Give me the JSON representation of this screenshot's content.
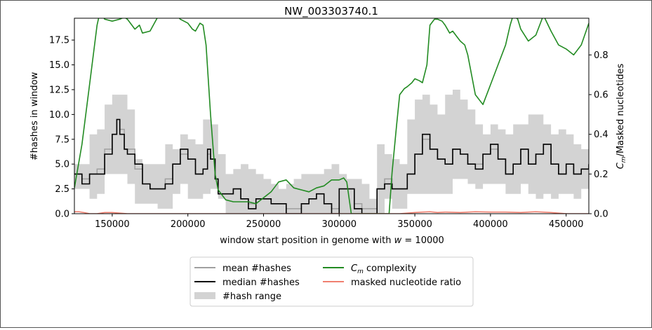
{
  "chart_data": {
    "type": "line",
    "title": "NW_003303740.1",
    "xlabel": "window start position in genome with w = 10000",
    "xlabel_parts": [
      "window start position in genome with ",
      "w",
      " = 10000"
    ],
    "ylabel": "#hashes in window",
    "y2label": "C_m/Masked nucleotides",
    "y2label_parts": [
      "C",
      "m",
      "/Masked nucleotides"
    ],
    "xlim": [
      125000,
      465000
    ],
    "ylim": [
      0,
      19.7
    ],
    "y2lim": [
      0,
      0.985
    ],
    "xticks": [
      150000,
      200000,
      250000,
      300000,
      350000,
      400000,
      450000
    ],
    "yticks": [
      0.0,
      2.5,
      5.0,
      7.5,
      10.0,
      12.5,
      15.0,
      17.5
    ],
    "y2ticks": [
      0.0,
      0.2,
      0.4,
      0.6,
      0.8
    ],
    "legend": {
      "placement": "bottom-center",
      "entries": [
        {
          "label": "mean #hashes",
          "color": "#a0a0a0"
        },
        {
          "label": "median #hashes",
          "color": "#000000"
        },
        {
          "label": "#hash range",
          "color": "#d3d3d3"
        },
        {
          "label": "C_m complexity",
          "label_parts": [
            "C",
            "m",
            " complexity"
          ],
          "color": "#228b22"
        },
        {
          "label": "masked nucleotide ratio",
          "label_parts": [
            "",
            "",
            "masked nucleotide ratio"
          ],
          "color": "#f08070"
        }
      ]
    },
    "series": [
      {
        "name": "#hash range",
        "color": "#d3d3d3",
        "x": [
          125000,
          135000,
          140000,
          145000,
          150000,
          155000,
          160000,
          165000,
          170000,
          175000,
          180000,
          185000,
          190000,
          195000,
          200000,
          205000,
          210000,
          215000,
          220000,
          225000,
          230000,
          235000,
          240000,
          245000,
          250000,
          255000,
          260000,
          265000,
          270000,
          275000,
          280000,
          285000,
          290000,
          295000,
          300000,
          305000,
          310000,
          315000,
          320000,
          325000,
          330000,
          335000,
          340000,
          345000,
          350000,
          355000,
          360000,
          365000,
          370000,
          375000,
          380000,
          385000,
          390000,
          395000,
          400000,
          405000,
          410000,
          415000,
          420000,
          425000,
          430000,
          435000,
          440000,
          445000,
          450000,
          455000,
          460000,
          465000
        ],
        "low": [
          2.5,
          1.5,
          2.0,
          4.0,
          4.0,
          4.0,
          3.0,
          1.0,
          1.0,
          1.0,
          0.5,
          0.5,
          2.0,
          3.0,
          1.5,
          1.5,
          2.0,
          2.5,
          1.5,
          0.0,
          0.0,
          0.0,
          0.0,
          0.0,
          0.0,
          0.0,
          0.0,
          0.0,
          0.0,
          0.0,
          0.0,
          0.0,
          0.0,
          0.0,
          0.0,
          0.0,
          0.0,
          0.0,
          0.0,
          0.0,
          1.5,
          0.5,
          0.5,
          2.0,
          2.0,
          2.0,
          2.0,
          2.0,
          2.0,
          3.5,
          3.5,
          3.0,
          2.5,
          3.0,
          3.0,
          3.0,
          2.0,
          2.0,
          3.0,
          2.0,
          1.5,
          2.0,
          1.5,
          2.0,
          2.0,
          1.5,
          2.5,
          3.0
        ],
        "high": [
          5.0,
          8.0,
          8.5,
          11.0,
          12.0,
          12.0,
          10.5,
          5.5,
          5.0,
          5.0,
          5.0,
          7.0,
          6.5,
          8.0,
          7.5,
          7.0,
          9.5,
          9.0,
          6.0,
          4.0,
          4.5,
          5.0,
          4.5,
          4.0,
          3.5,
          3.0,
          2.5,
          3.0,
          3.5,
          4.0,
          4.0,
          4.0,
          4.5,
          5.0,
          4.0,
          3.5,
          3.5,
          3.0,
          1.5,
          7.0,
          6.0,
          5.5,
          5.0,
          9.5,
          11.5,
          12.0,
          11.0,
          10.0,
          12.0,
          12.5,
          11.5,
          10.5,
          9.0,
          8.0,
          9.0,
          8.5,
          8.0,
          9.0,
          9.0,
          10.0,
          10.0,
          9.0,
          8.0,
          8.5,
          8.0,
          7.0,
          6.5,
          6.5
        ]
      },
      {
        "name": "mean #hashes",
        "color": "#a0a0a0",
        "x": [
          125000,
          130000,
          135000,
          140000,
          145000,
          150000,
          153000,
          155000,
          158000,
          160000,
          165000,
          170000,
          175000,
          180000,
          185000,
          190000,
          195000,
          200000,
          205000,
          210000,
          213000,
          215000,
          218000,
          220000,
          225000,
          230000,
          235000,
          240000,
          245000,
          250000,
          255000,
          260000,
          265000,
          270000,
          275000,
          280000,
          285000,
          290000,
          295000,
          300000,
          305000,
          310000,
          315000,
          320000,
          325000,
          330000,
          335000,
          340000,
          345000,
          350000,
          355000,
          360000,
          365000,
          370000,
          375000,
          380000,
          385000,
          390000,
          395000,
          400000,
          405000,
          410000,
          415000,
          420000,
          425000,
          430000,
          435000,
          440000,
          445000,
          450000,
          455000,
          460000,
          465000
        ],
        "y": [
          4.0,
          3.5,
          4.0,
          4.5,
          6.5,
          8.0,
          9.5,
          8.5,
          6.5,
          6.5,
          4.5,
          3.0,
          2.5,
          2.5,
          3.5,
          5.0,
          6.0,
          5.5,
          4.0,
          4.5,
          6.0,
          5.5,
          3.5,
          2.0,
          2.0,
          2.5,
          1.5,
          1.0,
          1.5,
          1.5,
          1.0,
          1.0,
          0.5,
          0.5,
          1.0,
          1.5,
          2.0,
          1.0,
          0.5,
          2.5,
          2.5,
          1.0,
          0.5,
          0.5,
          2.5,
          3.5,
          2.5,
          2.5,
          4.0,
          6.0,
          7.5,
          6.5,
          5.5,
          5.0,
          6.5,
          6.0,
          5.0,
          5.0,
          6.0,
          6.5,
          5.5,
          4.0,
          5.0,
          6.5,
          5.0,
          6.0,
          7.0,
          5.0,
          4.0,
          5.0,
          4.0,
          4.5,
          5.0
        ]
      },
      {
        "name": "median #hashes",
        "color": "#000000",
        "x": [
          125000,
          130000,
          135000,
          140000,
          145000,
          150000,
          153000,
          155000,
          158000,
          160000,
          165000,
          170000,
          175000,
          180000,
          185000,
          190000,
          195000,
          200000,
          205000,
          210000,
          213000,
          215000,
          218000,
          220000,
          225000,
          230000,
          235000,
          240000,
          245000,
          250000,
          255000,
          260000,
          265000,
          270000,
          275000,
          280000,
          285000,
          290000,
          295000,
          300000,
          305000,
          310000,
          315000,
          320000,
          325000,
          330000,
          335000,
          340000,
          345000,
          350000,
          355000,
          360000,
          365000,
          370000,
          375000,
          380000,
          385000,
          390000,
          395000,
          400000,
          405000,
          410000,
          415000,
          420000,
          425000,
          430000,
          435000,
          440000,
          445000,
          450000,
          455000,
          460000,
          465000
        ],
        "y": [
          4.0,
          3.0,
          4.0,
          4.0,
          6.0,
          8.0,
          9.5,
          8.0,
          6.5,
          6.0,
          5.0,
          3.0,
          2.5,
          2.5,
          3.0,
          5.0,
          6.5,
          5.5,
          4.0,
          4.5,
          6.5,
          5.5,
          3.5,
          2.0,
          2.0,
          2.5,
          1.5,
          0.5,
          1.5,
          1.5,
          1.0,
          1.0,
          0.0,
          0.0,
          1.0,
          1.5,
          2.0,
          1.0,
          0.0,
          2.5,
          2.5,
          0.5,
          0.0,
          0.0,
          2.5,
          3.0,
          2.5,
          2.5,
          4.0,
          6.0,
          8.0,
          6.5,
          5.5,
          5.0,
          6.5,
          6.0,
          5.0,
          4.5,
          6.0,
          7.0,
          5.5,
          4.0,
          5.0,
          6.5,
          5.0,
          6.0,
          7.0,
          5.0,
          4.0,
          5.0,
          4.0,
          4.5,
          5.0
        ]
      },
      {
        "name": "C_m complexity",
        "color": "#228b22",
        "axis": "right",
        "x": [
          125000,
          130000,
          135000,
          140000,
          142000,
          145000,
          150000,
          155000,
          158000,
          160000,
          165000,
          168000,
          170000,
          175000,
          180000,
          185000,
          190000,
          195000,
          200000,
          203000,
          205000,
          208000,
          210000,
          212000,
          215000,
          218000,
          220000,
          225000,
          230000,
          235000,
          240000,
          245000,
          250000,
          255000,
          260000,
          265000,
          270000,
          275000,
          280000,
          285000,
          290000,
          295000,
          300000,
          303000,
          305000,
          308000,
          310000,
          312000,
          315000,
          320000,
          325000,
          330000,
          333000,
          335000,
          338000,
          340000,
          343000,
          345000,
          348000,
          350000,
          353000,
          355000,
          358000,
          360000,
          363000,
          365000,
          368000,
          370000,
          373000,
          375000,
          378000,
          380000,
          383000,
          385000,
          390000,
          395000,
          400000,
          405000,
          410000,
          413000,
          415000,
          418000,
          420000,
          425000,
          430000,
          433000,
          435000,
          440000,
          445000,
          450000,
          455000,
          460000,
          465000
        ],
        "y": [
          0.13,
          0.35,
          0.65,
          0.95,
          1.02,
          0.98,
          0.97,
          0.98,
          0.99,
          0.98,
          0.93,
          0.95,
          0.91,
          0.92,
          0.99,
          1.0,
          1.02,
          0.98,
          0.96,
          0.93,
          0.92,
          0.96,
          0.95,
          0.85,
          0.5,
          0.2,
          0.12,
          0.07,
          0.06,
          0.06,
          0.06,
          0.05,
          0.08,
          0.11,
          0.16,
          0.17,
          0.13,
          0.12,
          0.11,
          0.13,
          0.14,
          0.17,
          0.17,
          0.18,
          0.16,
          0.0,
          0.0,
          0.0,
          0.0,
          0.0,
          0.0,
          0.0,
          0.0,
          0.21,
          0.45,
          0.6,
          0.63,
          0.64,
          0.66,
          0.68,
          0.67,
          0.66,
          0.75,
          0.95,
          0.98,
          0.98,
          0.97,
          0.95,
          0.91,
          0.92,
          0.89,
          0.87,
          0.85,
          0.8,
          0.6,
          0.55,
          0.65,
          0.75,
          0.85,
          0.95,
          1.0,
          0.98,
          0.93,
          0.87,
          0.9,
          0.96,
          1.0,
          0.92,
          0.85,
          0.83,
          0.8,
          0.85,
          0.96
        ]
      },
      {
        "name": "masked nucleotide ratio",
        "color": "#f08070",
        "axis": "right",
        "x": [
          125000,
          128000,
          132000,
          135000,
          140000,
          145000,
          150000,
          160000,
          170000,
          200000,
          250000,
          300000,
          320000,
          330000,
          340000,
          350000,
          355000,
          360000,
          365000,
          370000,
          380000,
          390000,
          400000,
          410000,
          420000,
          430000,
          440000,
          450000,
          465000
        ],
        "y": [
          0.01,
          0.01,
          0.005,
          0.0,
          0.0,
          0.006,
          0.006,
          0.0,
          0.0,
          0.0,
          0.0,
          0.0,
          0.0,
          0.0,
          0.0,
          0.006,
          0.008,
          0.01,
          0.006,
          0.008,
          0.006,
          0.01,
          0.008,
          0.008,
          0.006,
          0.01,
          0.006,
          0.0,
          0.0
        ]
      }
    ]
  }
}
